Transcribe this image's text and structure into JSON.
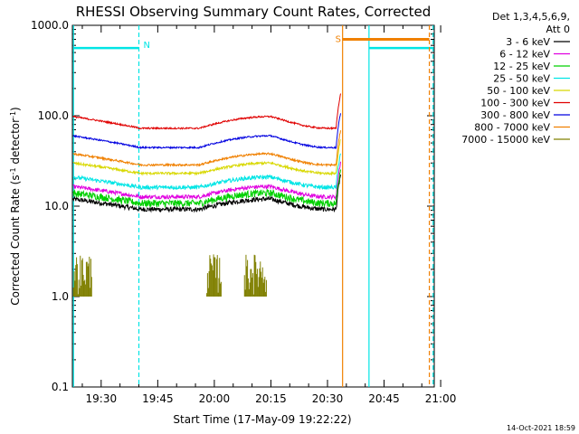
{
  "chart_data": {
    "type": "line",
    "title": "RHESSI Observing Summary Count Rates, Corrected",
    "xlabel": "Start Time (17-May-09 19:22:22)",
    "ylabel_main": "Corrected Count Rate (s",
    "ylabel_sup1": "-1",
    "ylabel_mid": " detector",
    "ylabel_sup2": "-1",
    "ylabel_end": ")",
    "yscale": "log",
    "ylim": [
      0.1,
      1000.0
    ],
    "xlim_minutes": [
      19.37,
      20.98
    ],
    "y_ticks": [
      {
        "value": 1000,
        "label": "1000.0"
      },
      {
        "value": 100,
        "label": "100.0"
      },
      {
        "value": 10,
        "label": "10.0"
      },
      {
        "value": 1,
        "label": "1.0"
      },
      {
        "value": 0.1,
        "label": "0.1"
      }
    ],
    "x_ticks": [
      {
        "time": "19:30"
      },
      {
        "time": "19:45"
      },
      {
        "time": "20:00"
      },
      {
        "time": "20:15"
      },
      {
        "time": "20:30"
      },
      {
        "time": "20:45"
      },
      {
        "time": "21:00"
      }
    ],
    "legend": {
      "placement": "right",
      "header_line1": "Det 1,3,4,5,6,9,",
      "header_line2": "Att 0"
    },
    "series": [
      {
        "name": "3 - 6 keV",
        "color": "#000000",
        "level": 12,
        "depth": 0.42,
        "jitter": 0.06
      },
      {
        "name": "6 - 12 keV",
        "color": "#e000e0",
        "level": 16.5,
        "depth": 0.42,
        "jitter": 0.05
      },
      {
        "name": "12 - 25 keV",
        "color": "#00d000",
        "level": 14,
        "depth": 0.42,
        "jitter": 0.09
      },
      {
        "name": "25 - 50 keV",
        "color": "#00e5e5",
        "level": 21,
        "depth": 0.42,
        "jitter": 0.05
      },
      {
        "name": "50 - 100 keV",
        "color": "#d8d800",
        "level": 30,
        "depth": 0.42,
        "jitter": 0.03
      },
      {
        "name": "100 - 300 keV",
        "color": "#e00000",
        "level": 98,
        "depth": 0.47,
        "jitter": 0.02
      },
      {
        "name": "300 - 800 keV",
        "color": "#0000e0",
        "level": 60,
        "depth": 0.47,
        "jitter": 0.02
      },
      {
        "name": "800 - 7000 keV",
        "color": "#f08000",
        "level": 38,
        "depth": 0.45,
        "jitter": 0.025
      },
      {
        "name": "7000 - 15000 keV",
        "color": "#808000",
        "level": null,
        "depth": null,
        "jitter": null
      }
    ],
    "intervals": [
      {
        "label": "N",
        "color": "#00e5e5",
        "start": "19:22",
        "end": "19:40",
        "bar_level": 560
      },
      {
        "label": "",
        "color": "#00e5e5",
        "start": "20:41",
        "end": "20:58",
        "bar_level": 560
      },
      {
        "label": "S",
        "color": "#f08000",
        "start": "20:34",
        "end": "20:57",
        "bar_level": 700
      }
    ],
    "grid": false
  },
  "footer": {
    "timestamp": "14-Oct-2021 18:59"
  }
}
